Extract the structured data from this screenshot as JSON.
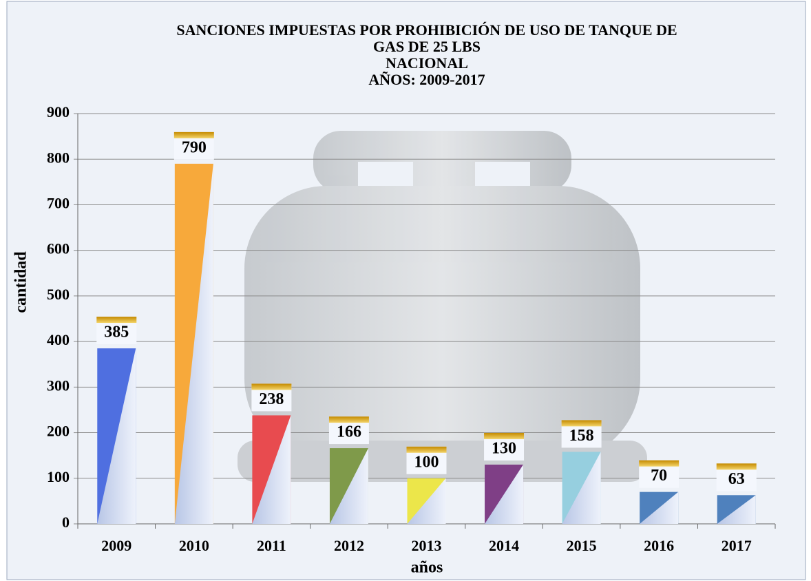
{
  "chart_data": {
    "type": "bar",
    "title": [
      "SANCIONES IMPUESTAS POR PROHIBICIÓN DE USO DE TANQUE DE",
      "GAS DE 25 LBS",
      "NACIONAL",
      "AÑOS: 2009-2017"
    ],
    "x_label": "años",
    "y_label": "cantidad",
    "categories": [
      "2009",
      "2010",
      "2011",
      "2012",
      "2013",
      "2014",
      "2015",
      "2016",
      "2017"
    ],
    "values": [
      385,
      790,
      238,
      166,
      100,
      130,
      158,
      70,
      63
    ],
    "colors": [
      "#4f6fe0",
      "#f7a93b",
      "#e84b4f",
      "#7f9a4a",
      "#ece64a",
      "#7f3f86",
      "#96cfdf",
      "#4f81bd",
      "#4f81bd"
    ],
    "ylim": [
      0,
      900
    ],
    "yticks": [
      0,
      100,
      200,
      300,
      400,
      500,
      600,
      700,
      800,
      900
    ],
    "grid": true
  }
}
